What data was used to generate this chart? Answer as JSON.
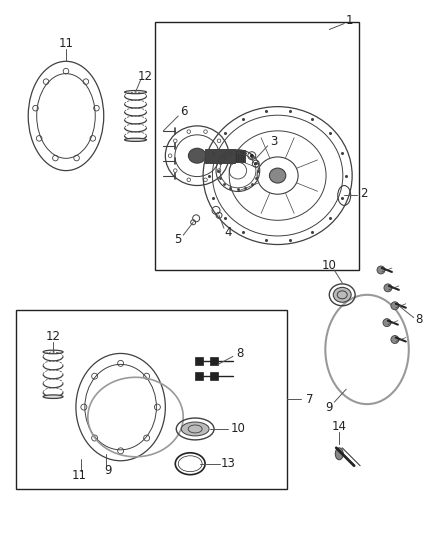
{
  "bg_color": "#ffffff",
  "line_color": "#404040",
  "dark_color": "#222222",
  "gray_color": "#888888",
  "light_gray": "#cccccc",
  "fig_width": 4.38,
  "fig_height": 5.33,
  "dpi": 100
}
